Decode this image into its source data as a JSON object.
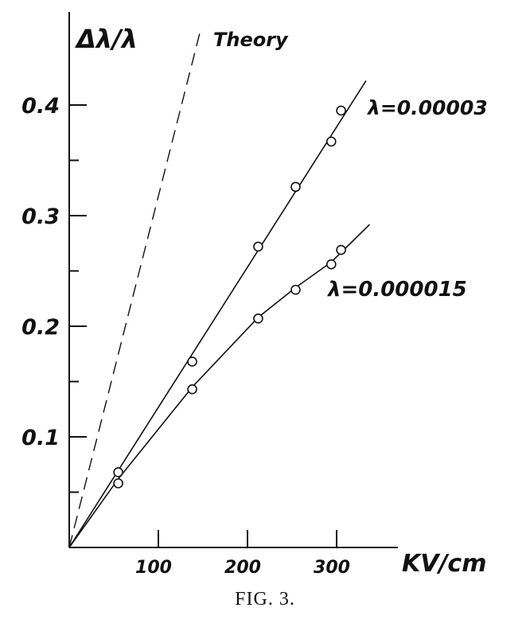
{
  "caption": "FIG. 3.",
  "chart_data": {
    "type": "line",
    "xlabel": "KV/cm",
    "ylabel": "Δλ/λ",
    "xlim": [
      0,
      350
    ],
    "ylim": [
      0,
      0.48
    ],
    "x_ticks": [
      {
        "value": 100,
        "label": "100"
      },
      {
        "value": 200,
        "label": "200"
      },
      {
        "value": 300,
        "label": "300"
      }
    ],
    "y_ticks": [
      {
        "value": 0.1,
        "label": "0.1"
      },
      {
        "value": 0.2,
        "label": "0.2"
      },
      {
        "value": 0.3,
        "label": "0.3"
      },
      {
        "value": 0.4,
        "label": "0.4"
      }
    ],
    "y_minor_ticks": [
      0.05,
      0.15,
      0.25,
      0.35
    ],
    "grid": false,
    "series": [
      {
        "name": "Theory",
        "style": "dashed",
        "line": [
          [
            0,
            0
          ],
          [
            148,
            0.47
          ]
        ],
        "points": []
      },
      {
        "name": "λ=0.00003",
        "style": "solid",
        "line": [
          [
            0,
            0
          ],
          [
            333,
            0.422
          ]
        ],
        "points": [
          [
            55,
            0.068
          ],
          [
            138,
            0.168
          ],
          [
            212,
            0.272
          ],
          [
            254,
            0.326
          ],
          [
            294,
            0.367
          ],
          [
            305,
            0.395
          ]
        ]
      },
      {
        "name": "λ=0.000015",
        "style": "solid",
        "line": [
          [
            0,
            0
          ],
          [
            55,
            0.062
          ],
          [
            138,
            0.145
          ],
          [
            212,
            0.208
          ],
          [
            254,
            0.235
          ],
          [
            294,
            0.258
          ],
          [
            337,
            0.292
          ]
        ],
        "points": [
          [
            55,
            0.058
          ],
          [
            138,
            0.143
          ],
          [
            212,
            0.207
          ],
          [
            254,
            0.233
          ],
          [
            294,
            0.256
          ],
          [
            305,
            0.269
          ]
        ]
      }
    ]
  }
}
